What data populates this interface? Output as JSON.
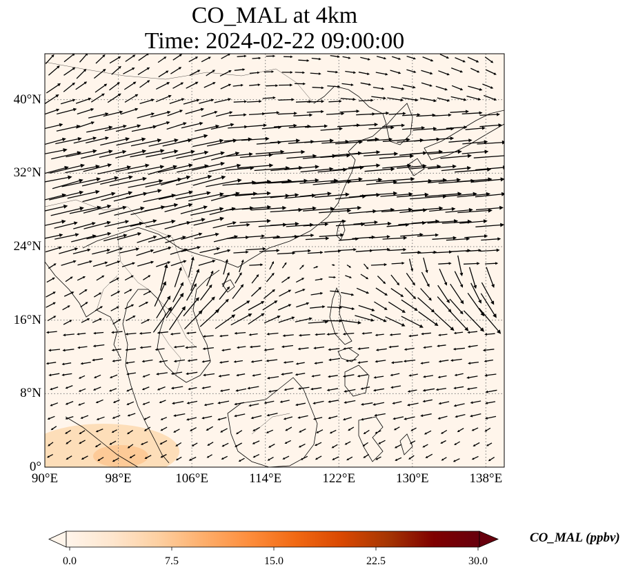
{
  "title": {
    "line1": "CO_MAL at 4km",
    "line2": "Time: 2024-02-22 09:00:00"
  },
  "map": {
    "lon_range": [
      90,
      140
    ],
    "lat_range": [
      0,
      45
    ],
    "lat_ticks": [
      {
        "value": 0,
        "label": "0°"
      },
      {
        "value": 8,
        "label": "8°N"
      },
      {
        "value": 16,
        "label": "16°N"
      },
      {
        "value": 24,
        "label": "24°N"
      },
      {
        "value": 32,
        "label": "32°N"
      },
      {
        "value": 40,
        "label": "40°N"
      }
    ],
    "lon_ticks": [
      {
        "value": 90,
        "label": "90°E"
      },
      {
        "value": 98,
        "label": "98°E"
      },
      {
        "value": 106,
        "label": "106°E"
      },
      {
        "value": 114,
        "label": "114°E"
      },
      {
        "value": 122,
        "label": "122°E"
      },
      {
        "value": 130,
        "label": "130°E"
      },
      {
        "value": 138,
        "label": "138°E"
      }
    ],
    "gridlines": true,
    "background_color": "#fff5eb",
    "coastline_color": "#000000",
    "vector_color": "#000000",
    "field": "wind vectors over CO_MAL concentration",
    "wind_pattern": "strong westerly jet 24–38°N; anticyclonic circulation centred near 122°E 20°N; easterlies south of 16°N"
  },
  "colorbar": {
    "label": "CO_MAL (ppbv)",
    "min": 0.0,
    "max": 30.0,
    "ticks": [
      "0.0",
      "7.5",
      "15.0",
      "22.5",
      "30.0"
    ],
    "colormap": "OrRd",
    "extend": "both",
    "colors": [
      "#fff5eb",
      "#fee6ce",
      "#fdd0a2",
      "#fdae6b",
      "#fd8d3c",
      "#f16913",
      "#d94801",
      "#a63603",
      "#7f0000",
      "#67000d"
    ]
  }
}
